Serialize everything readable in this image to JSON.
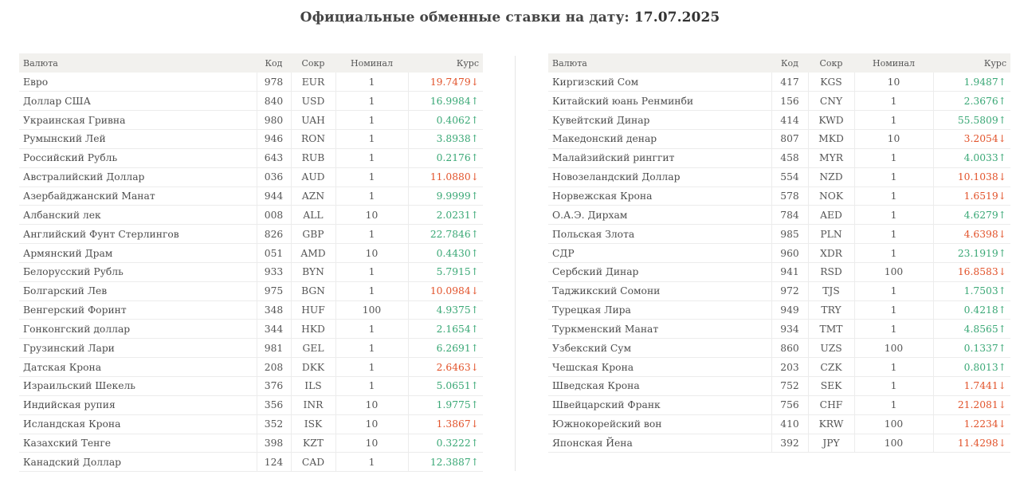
{
  "header": {
    "title_prefix": "Официальные обменные ставки на дату:",
    "date": "17.07.2025"
  },
  "columns": {
    "currency": "Валюта",
    "code": "Код",
    "abbr": "Сокр",
    "nominal": "Номинал",
    "rate": "Курс"
  },
  "colors": {
    "up": "#3aa876",
    "down": "#e2532b",
    "header_bg": "#f2f1ee"
  },
  "left_table": [
    {
      "name": "Евро",
      "code": "978",
      "abbr": "EUR",
      "nominal": "1",
      "rate": "19.7479↓",
      "trend": "down"
    },
    {
      "name": "Доллар США",
      "code": "840",
      "abbr": "USD",
      "nominal": "1",
      "rate": "16.9984↑",
      "trend": "up"
    },
    {
      "name": "Украинская Гривна",
      "code": "980",
      "abbr": "UAH",
      "nominal": "1",
      "rate": "0.4062↑",
      "trend": "up"
    },
    {
      "name": "Румынский Лей",
      "code": "946",
      "abbr": "RON",
      "nominal": "1",
      "rate": "3.8938↑",
      "trend": "up"
    },
    {
      "name": "Российский Рубль",
      "code": "643",
      "abbr": "RUB",
      "nominal": "1",
      "rate": "0.2176↑",
      "trend": "up"
    },
    {
      "name": "Австралийский Доллар",
      "code": "036",
      "abbr": "AUD",
      "nominal": "1",
      "rate": "11.0880↓",
      "trend": "down"
    },
    {
      "name": "Азербайджанский Манат",
      "code": "944",
      "abbr": "AZN",
      "nominal": "1",
      "rate": "9.9999↑",
      "trend": "up"
    },
    {
      "name": "Албанский лек",
      "code": "008",
      "abbr": "ALL",
      "nominal": "10",
      "rate": "2.0231↑",
      "trend": "up"
    },
    {
      "name": "Английский Фунт Стерлингов",
      "code": "826",
      "abbr": "GBP",
      "nominal": "1",
      "rate": "22.7846↑",
      "trend": "up"
    },
    {
      "name": "Армянский Драм",
      "code": "051",
      "abbr": "AMD",
      "nominal": "10",
      "rate": "0.4430↑",
      "trend": "up"
    },
    {
      "name": "Белорусский Рубль",
      "code": "933",
      "abbr": "BYN",
      "nominal": "1",
      "rate": "5.7915↑",
      "trend": "up"
    },
    {
      "name": "Болгарский Лев",
      "code": "975",
      "abbr": "BGN",
      "nominal": "1",
      "rate": "10.0984↓",
      "trend": "down"
    },
    {
      "name": "Венгерский Форинт",
      "code": "348",
      "abbr": "HUF",
      "nominal": "100",
      "rate": "4.9375↑",
      "trend": "up"
    },
    {
      "name": "Гонконгский доллар",
      "code": "344",
      "abbr": "HKD",
      "nominal": "1",
      "rate": "2.1654↑",
      "trend": "up"
    },
    {
      "name": "Грузинский Лари",
      "code": "981",
      "abbr": "GEL",
      "nominal": "1",
      "rate": "6.2691↑",
      "trend": "up"
    },
    {
      "name": "Датская Крона",
      "code": "208",
      "abbr": "DKK",
      "nominal": "1",
      "rate": "2.6463↓",
      "trend": "down"
    },
    {
      "name": "Израильский Шекель",
      "code": "376",
      "abbr": "ILS",
      "nominal": "1",
      "rate": "5.0651↑",
      "trend": "up"
    },
    {
      "name": "Индийская рупия",
      "code": "356",
      "abbr": "INR",
      "nominal": "10",
      "rate": "1.9775↑",
      "trend": "up"
    },
    {
      "name": "Исландская Крона",
      "code": "352",
      "abbr": "ISK",
      "nominal": "10",
      "rate": "1.3867↓",
      "trend": "down"
    },
    {
      "name": "Казахский Тенге",
      "code": "398",
      "abbr": "KZT",
      "nominal": "10",
      "rate": "0.3222↑",
      "trend": "up"
    },
    {
      "name": "Канадский Доллар",
      "code": "124",
      "abbr": "CAD",
      "nominal": "1",
      "rate": "12.3887↑",
      "trend": "up"
    }
  ],
  "right_table": [
    {
      "name": "Киргизский Сом",
      "code": "417",
      "abbr": "KGS",
      "nominal": "10",
      "rate": "1.9487↑",
      "trend": "up"
    },
    {
      "name": "Китайский юань Ренминби",
      "code": "156",
      "abbr": "CNY",
      "nominal": "1",
      "rate": "2.3676↑",
      "trend": "up"
    },
    {
      "name": "Кувейтский Динар",
      "code": "414",
      "abbr": "KWD",
      "nominal": "1",
      "rate": "55.5809↑",
      "trend": "up"
    },
    {
      "name": "Македонский денар",
      "code": "807",
      "abbr": "MKD",
      "nominal": "10",
      "rate": "3.2054↓",
      "trend": "down"
    },
    {
      "name": "Малайзийский ринггит",
      "code": "458",
      "abbr": "MYR",
      "nominal": "1",
      "rate": "4.0033↑",
      "trend": "up"
    },
    {
      "name": "Новозеландский Доллар",
      "code": "554",
      "abbr": "NZD",
      "nominal": "1",
      "rate": "10.1038↓",
      "trend": "down"
    },
    {
      "name": "Норвежская Крона",
      "code": "578",
      "abbr": "NOK",
      "nominal": "1",
      "rate": "1.6519↓",
      "trend": "down"
    },
    {
      "name": "О.А.Э. Дирхам",
      "code": "784",
      "abbr": "AED",
      "nominal": "1",
      "rate": "4.6279↑",
      "trend": "up"
    },
    {
      "name": "Польская Злота",
      "code": "985",
      "abbr": "PLN",
      "nominal": "1",
      "rate": "4.6398↓",
      "trend": "down"
    },
    {
      "name": "СДР",
      "code": "960",
      "abbr": "XDR",
      "nominal": "1",
      "rate": "23.1919↑",
      "trend": "up"
    },
    {
      "name": "Сербский Динар",
      "code": "941",
      "abbr": "RSD",
      "nominal": "100",
      "rate": "16.8583↓",
      "trend": "down"
    },
    {
      "name": "Таджикский Сомони",
      "code": "972",
      "abbr": "TJS",
      "nominal": "1",
      "rate": "1.7503↑",
      "trend": "up"
    },
    {
      "name": "Турецкая Лира",
      "code": "949",
      "abbr": "TRY",
      "nominal": "1",
      "rate": "0.4218↑",
      "trend": "up"
    },
    {
      "name": "Туркменский Манат",
      "code": "934",
      "abbr": "TMT",
      "nominal": "1",
      "rate": "4.8565↑",
      "trend": "up"
    },
    {
      "name": "Узбекский Сум",
      "code": "860",
      "abbr": "UZS",
      "nominal": "100",
      "rate": "0.1337↑",
      "trend": "up"
    },
    {
      "name": "Чешская Крона",
      "code": "203",
      "abbr": "CZK",
      "nominal": "1",
      "rate": "0.8013↑",
      "trend": "up"
    },
    {
      "name": "Шведская Крона",
      "code": "752",
      "abbr": "SEK",
      "nominal": "1",
      "rate": "1.7441↓",
      "trend": "down"
    },
    {
      "name": "Швейцарский Франк",
      "code": "756",
      "abbr": "CHF",
      "nominal": "1",
      "rate": "21.2081↓",
      "trend": "down"
    },
    {
      "name": "Южнокорейский вон",
      "code": "410",
      "abbr": "KRW",
      "nominal": "100",
      "rate": "1.2234↓",
      "trend": "down"
    },
    {
      "name": "Японская Йена",
      "code": "392",
      "abbr": "JPY",
      "nominal": "100",
      "rate": "11.4298↓",
      "trend": "down"
    }
  ]
}
